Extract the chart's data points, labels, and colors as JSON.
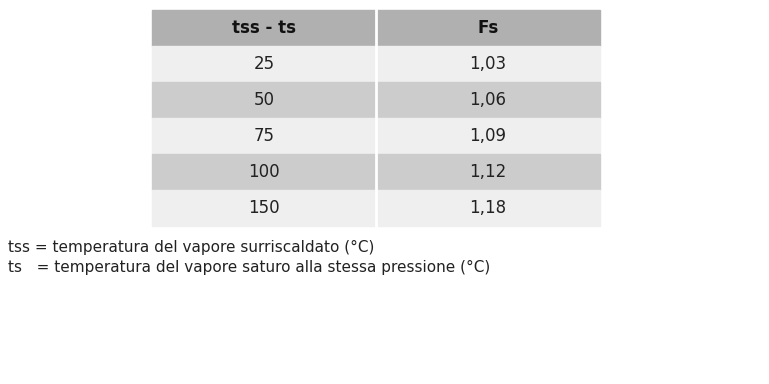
{
  "col_headers": [
    "tss - ts",
    "Fs"
  ],
  "rows": [
    [
      "25",
      "1,03"
    ],
    [
      "50",
      "1,06"
    ],
    [
      "75",
      "1,09"
    ],
    [
      "100",
      "1,12"
    ],
    [
      "150",
      "1,18"
    ]
  ],
  "header_bg": "#b0b0b0",
  "row_bg_even": "#cccccc",
  "row_bg_odd": "#efefef",
  "text_color": "#222222",
  "header_text_color": "#111111",
  "footer_lines": [
    "tss = temperatura del vapore surriscaldato (°C)",
    "ts   = temperatura del vapore saturo alla stessa pressione (°C)"
  ],
  "bg_color": "#ffffff",
  "fig_width": 7.69,
  "fig_height": 3.84,
  "dpi": 100
}
